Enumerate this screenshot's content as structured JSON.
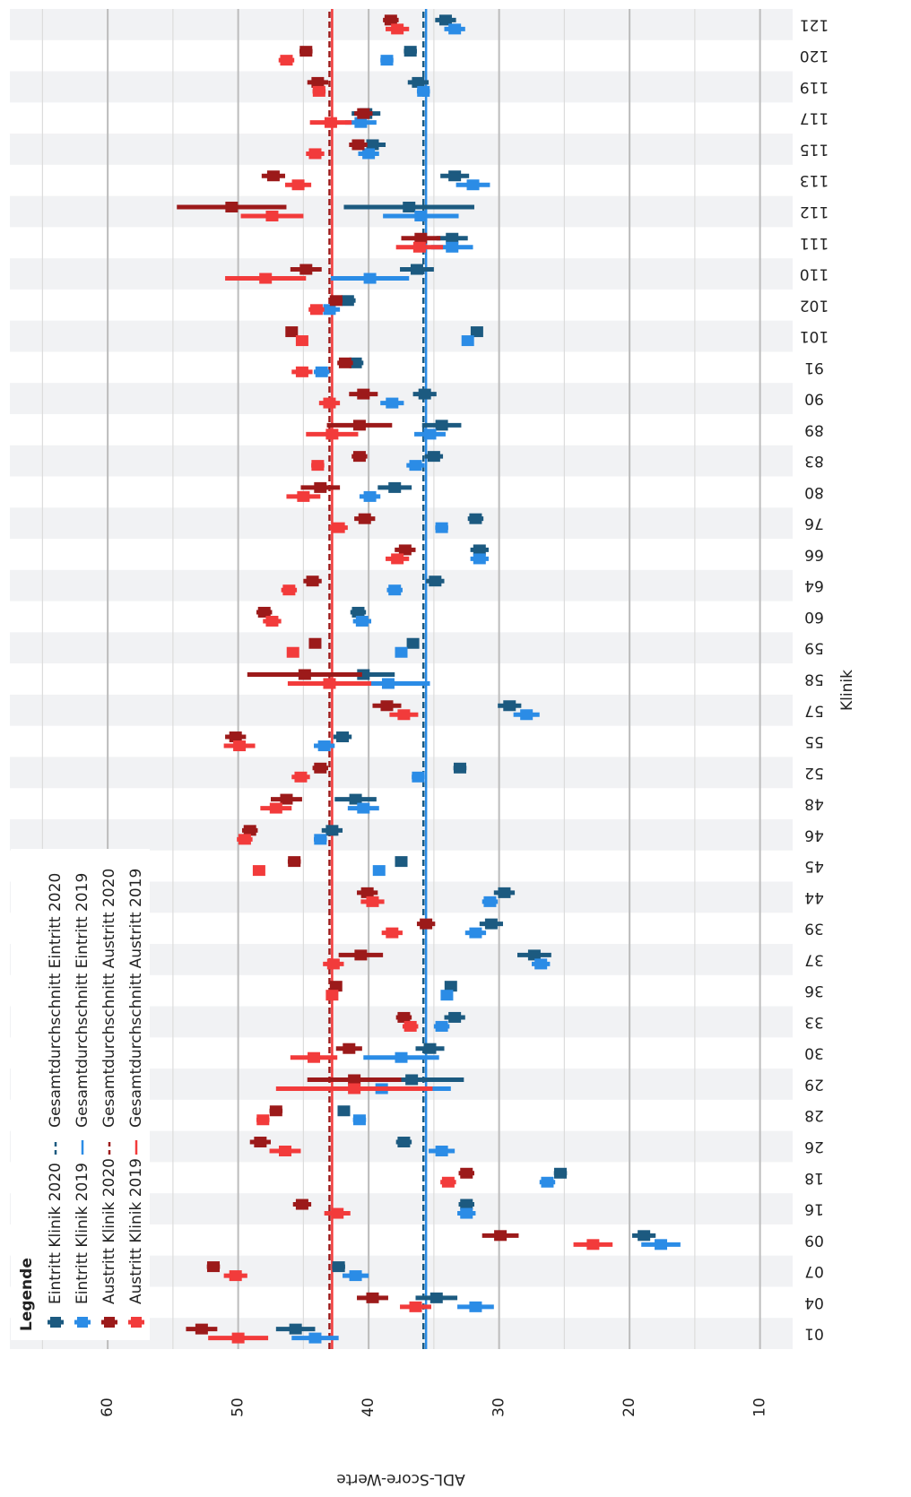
{
  "chart_data": {
    "type": "point_range",
    "y_label": "ADL-Score-Werte",
    "x_label": "Klinik",
    "legend_title": "Legende",
    "legend": "top-left",
    "ylim": [
      7.5,
      67.5
    ],
    "yticks": [
      10,
      20,
      30,
      40,
      50,
      60
    ],
    "yminor_ticks": [
      15,
      25,
      35,
      45,
      55,
      65
    ],
    "grid": true,
    "categories": [
      "01",
      "04",
      "07",
      "09",
      "16",
      "18",
      "26",
      "28",
      "29",
      "30",
      "33",
      "36",
      "37",
      "39",
      "44",
      "45",
      "46",
      "48",
      "52",
      "55",
      "57",
      "58",
      "59",
      "60",
      "64",
      "66",
      "76",
      "80",
      "83",
      "89",
      "90",
      "91",
      "101",
      "102",
      "110",
      "111",
      "112",
      "113",
      "115",
      "117",
      "119",
      "120",
      "121"
    ],
    "series": [
      {
        "name": "Eintritt Klinik 2020",
        "color": "#1c5a80",
        "values": [
          45.6,
          34.8,
          42.3,
          18.9,
          32.5,
          25.3,
          37.3,
          41.9,
          36.7,
          35.3,
          33.4,
          33.7,
          27.3,
          30.6,
          29.6,
          37.5,
          42.8,
          41.0,
          33.0,
          42.0,
          29.2,
          40.4,
          36.6,
          40.8,
          34.9,
          31.5,
          31.8,
          38.0,
          35.0,
          34.4,
          35.7,
          41.0,
          31.7,
          41.6,
          36.3,
          33.6,
          36.9,
          33.4,
          39.7,
          40.2,
          36.2,
          36.8,
          34.1
        ],
        "errors": [
          1.5,
          1.6,
          0.5,
          0.9,
          0.6,
          0.5,
          0.6,
          0.4,
          4.0,
          1.1,
          0.8,
          0.4,
          1.3,
          0.9,
          0.8,
          0.4,
          0.8,
          1.6,
          0.5,
          0.7,
          0.9,
          2.4,
          0.4,
          0.6,
          0.7,
          0.7,
          0.6,
          1.3,
          0.7,
          1.5,
          0.9,
          0.6,
          0.3,
          0.6,
          1.3,
          1.2,
          5.0,
          1.1,
          1.0,
          1.1,
          0.8,
          0.5,
          0.8
        ]
      },
      {
        "name": "Eintritt Klinik 2019",
        "color": "#2b8ce6",
        "values": [
          44.1,
          31.8,
          41.0,
          17.6,
          32.5,
          26.3,
          34.4,
          40.7,
          39.0,
          37.5,
          34.4,
          34.0,
          26.8,
          31.8,
          30.7,
          39.2,
          43.7,
          40.4,
          36.2,
          43.4,
          27.9,
          38.5,
          37.5,
          40.5,
          38.0,
          31.5,
          34.4,
          39.9,
          36.4,
          35.3,
          38.2,
          43.6,
          32.4,
          43.0,
          39.9,
          33.6,
          36.0,
          32.0,
          40.0,
          40.6,
          35.8,
          38.6,
          33.4
        ],
        "errors": [
          1.8,
          1.4,
          1.0,
          1.5,
          0.7,
          0.6,
          1.0,
          0.5,
          5.3,
          2.9,
          0.6,
          0.4,
          0.7,
          0.8,
          0.6,
          0.4,
          0.5,
          1.2,
          0.5,
          0.8,
          1.0,
          3.2,
          0.4,
          0.7,
          0.6,
          0.7,
          0.5,
          0.8,
          0.7,
          1.2,
          0.9,
          0.6,
          0.4,
          0.8,
          3.0,
          1.6,
          2.9,
          1.3,
          0.8,
          1.2,
          0.5,
          0.5,
          0.8
        ]
      },
      {
        "name": "Austritt Klinik 2020",
        "color": "#9c1a1a",
        "values": [
          52.8,
          39.7,
          51.9,
          29.9,
          45.1,
          32.5,
          48.3,
          47.1,
          41.1,
          41.5,
          37.3,
          42.5,
          40.6,
          35.6,
          40.1,
          45.7,
          49.1,
          46.3,
          43.7,
          50.2,
          38.6,
          44.9,
          44.1,
          48.0,
          44.3,
          37.2,
          40.3,
          43.7,
          40.7,
          40.7,
          40.4,
          41.8,
          45.9,
          42.5,
          44.8,
          36.0,
          50.5,
          47.3,
          40.8,
          40.4,
          43.9,
          44.8,
          38.3
        ],
        "errors": [
          1.2,
          1.2,
          0.5,
          1.4,
          0.7,
          0.6,
          0.8,
          0.5,
          3.6,
          1.0,
          0.6,
          0.4,
          1.7,
          0.7,
          0.8,
          0.5,
          0.6,
          1.2,
          0.6,
          0.8,
          1.1,
          4.4,
          0.4,
          0.6,
          0.7,
          0.8,
          0.8,
          1.5,
          0.6,
          2.5,
          1.1,
          0.6,
          0.4,
          0.5,
          1.2,
          1.5,
          4.2,
          0.9,
          0.7,
          0.7,
          0.8,
          0.5,
          0.6
        ]
      },
      {
        "name": "Austritt Klinik 2019",
        "color": "#f23b3b",
        "values": [
          50.0,
          36.4,
          50.2,
          22.8,
          42.4,
          33.9,
          46.4,
          48.1,
          41.1,
          44.2,
          36.8,
          42.8,
          42.7,
          38.2,
          39.7,
          48.4,
          49.5,
          47.1,
          45.2,
          49.9,
          37.3,
          43.0,
          45.8,
          47.4,
          46.1,
          37.8,
          42.3,
          45.0,
          43.9,
          42.8,
          43.0,
          45.1,
          45.1,
          44.0,
          47.9,
          36.1,
          47.4,
          45.4,
          44.1,
          42.9,
          43.8,
          46.3,
          37.8
        ],
        "errors": [
          2.3,
          1.2,
          0.9,
          1.5,
          1.0,
          0.6,
          1.2,
          0.5,
          6.0,
          1.8,
          0.6,
          0.4,
          0.8,
          0.8,
          0.9,
          0.4,
          0.6,
          1.2,
          0.7,
          1.2,
          1.1,
          3.2,
          0.4,
          0.7,
          0.6,
          0.9,
          0.7,
          1.3,
          0.5,
          2.0,
          0.8,
          0.8,
          0.4,
          0.6,
          3.1,
          1.8,
          2.4,
          1.0,
          0.7,
          1.6,
          0.5,
          0.6,
          0.9
        ]
      }
    ],
    "reference_lines": [
      {
        "name": "Gesamtdurchschnitt Eintritt 2020",
        "value": 35.8,
        "color": "#1c5a80",
        "dashed": true
      },
      {
        "name": "Gesamtdurchschnitt Eintritt 2019",
        "value": 35.6,
        "color": "#2b8ce6",
        "dashed": false
      },
      {
        "name": "Gesamtdurchschnitt Austritt 2020",
        "value": 43.0,
        "color": "#9c1a1a",
        "dashed": true
      },
      {
        "name": "Gesamtdurchschnitt Austritt 2019",
        "value": 42.8,
        "color": "#f23b3b",
        "dashed": false
      }
    ]
  }
}
